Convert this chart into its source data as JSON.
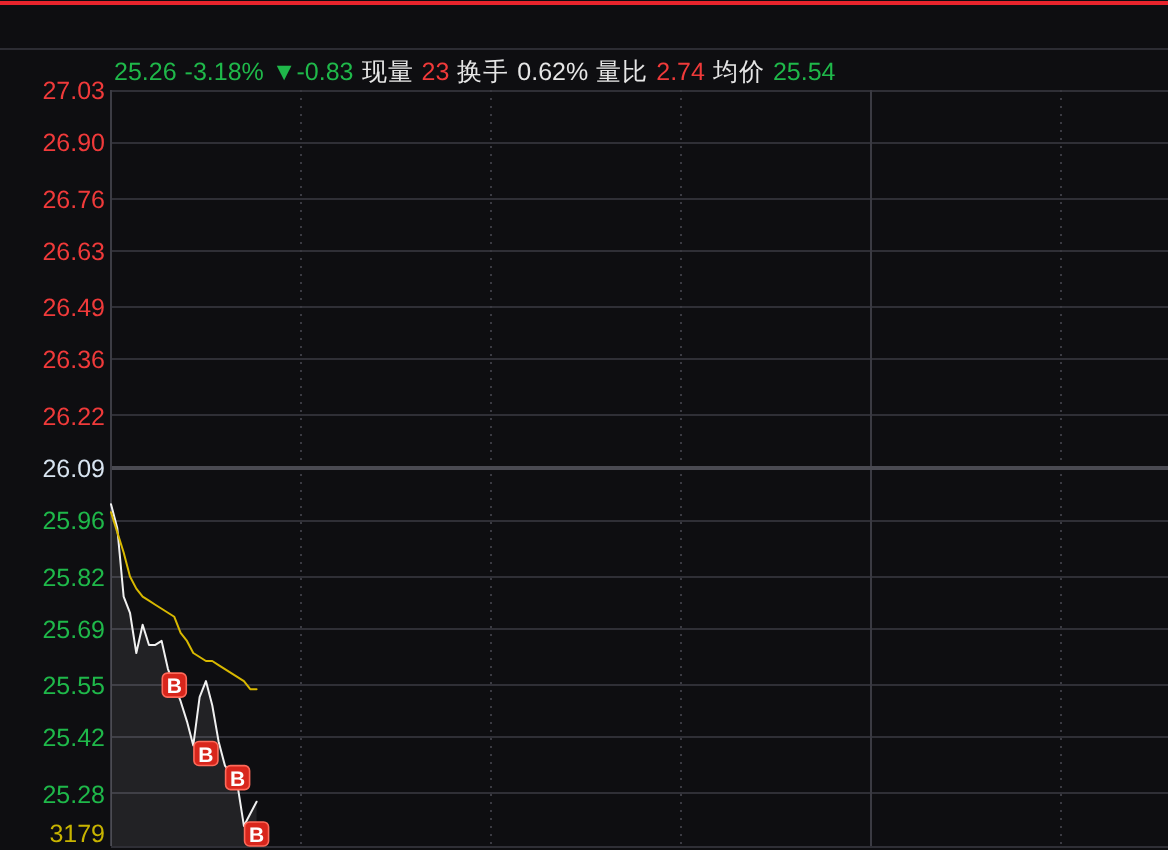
{
  "chart_data": {
    "type": "line",
    "categories": [
      null,
      null,
      null,
      null,
      null,
      null,
      null,
      null,
      null,
      null,
      null,
      null,
      null,
      null,
      null,
      null,
      null,
      null,
      null,
      null,
      null,
      null,
      null,
      null,
      null,
      null,
      null,
      null,
      null,
      null,
      null,
      null,
      null,
      null,
      null,
      null,
      null,
      null,
      null,
      null,
      null,
      null,
      null,
      null,
      null,
      null,
      null,
      null,
      null,
      null,
      null,
      null,
      null,
      null,
      null,
      null,
      null,
      null,
      null,
      null,
      null,
      null,
      null,
      null,
      null,
      null,
      null,
      null,
      null,
      null,
      null,
      null,
      null,
      null,
      null,
      null,
      null,
      null,
      null,
      null,
      null,
      null,
      null,
      null,
      null,
      null,
      null,
      null,
      null,
      null,
      null,
      null,
      null,
      null,
      null,
      null,
      null,
      null,
      null,
      null,
      null,
      null,
      null,
      null,
      null,
      null,
      null,
      null,
      null,
      null,
      null,
      null,
      null,
      null,
      null,
      null,
      null,
      null,
      null,
      null,
      null,
      null,
      null,
      null,
      null,
      null,
      null,
      null,
      null,
      null,
      null,
      null,
      null,
      null,
      null,
      null,
      null,
      null,
      null,
      null,
      null,
      null,
      null,
      null,
      null,
      null,
      null,
      null,
      null,
      null,
      null,
      null,
      null,
      null,
      null,
      null,
      null,
      null,
      null,
      null,
      null,
      null,
      null,
      null,
      null,
      null,
      null,
      null
    ],
    "series": [
      {
        "type": "area",
        "color": "#f0f0f0",
        "values": [
          26.0,
          25.94,
          25.77,
          25.73,
          25.63,
          25.7,
          25.65,
          25.65,
          25.66,
          25.59,
          25.55,
          25.51,
          25.46,
          25.4,
          25.52,
          25.56,
          25.5,
          25.41,
          25.35,
          25.33,
          25.3,
          25.2,
          25.23,
          25.26,
          null,
          null,
          null,
          null,
          null,
          null,
          null,
          null,
          null,
          null,
          null,
          null,
          null,
          null,
          null,
          null,
          null,
          null,
          null,
          null,
          null,
          null,
          null,
          null,
          null,
          null,
          null,
          null,
          null,
          null,
          null,
          null,
          null,
          null,
          null,
          null,
          null,
          null,
          null,
          null,
          null,
          null,
          null,
          null,
          null,
          null,
          null,
          null,
          null,
          null,
          null,
          null,
          null,
          null,
          null,
          null,
          null,
          null,
          null,
          null,
          null,
          null,
          null,
          null,
          null,
          null,
          null,
          null,
          null,
          null,
          null,
          null,
          null,
          null,
          null,
          null,
          null,
          null,
          null,
          null,
          null,
          null,
          null,
          null,
          null,
          null,
          null,
          null,
          null,
          null,
          null,
          null,
          null,
          null,
          null,
          null,
          null,
          null,
          null,
          null,
          null,
          null,
          null,
          null,
          null,
          null,
          null,
          null,
          null,
          null,
          null,
          null,
          null,
          null,
          null,
          null,
          null,
          null,
          null,
          null,
          null,
          null,
          null,
          null,
          null,
          null,
          null,
          null,
          null,
          null,
          null,
          null,
          null,
          null,
          null,
          null,
          null,
          null,
          null,
          null,
          null,
          null,
          null,
          null
        ]
      },
      {
        "type": "line",
        "color": "#d8b800",
        "values": [
          25.98,
          25.93,
          25.88,
          25.82,
          25.79,
          25.77,
          25.76,
          25.75,
          25.74,
          25.73,
          25.72,
          25.68,
          25.66,
          25.63,
          25.62,
          25.61,
          25.61,
          25.6,
          25.59,
          25.58,
          25.57,
          25.56,
          25.54,
          25.54,
          null,
          null,
          null,
          null,
          null,
          null,
          null,
          null,
          null,
          null,
          null,
          null,
          null,
          null,
          null,
          null,
          null,
          null,
          null,
          null,
          null,
          null,
          null,
          null,
          null,
          null,
          null,
          null,
          null,
          null,
          null,
          null,
          null,
          null,
          null,
          null,
          null,
          null,
          null,
          null,
          null,
          null,
          null,
          null,
          null,
          null,
          null,
          null,
          null,
          null,
          null,
          null,
          null,
          null,
          null,
          null,
          null,
          null,
          null,
          null,
          null,
          null,
          null,
          null,
          null,
          null,
          null,
          null,
          null,
          null,
          null,
          null,
          null,
          null,
          null,
          null,
          null,
          null,
          null,
          null,
          null,
          null,
          null,
          null,
          null,
          null,
          null,
          null,
          null,
          null,
          null,
          null,
          null,
          null,
          null,
          null,
          null,
          null,
          null,
          null,
          null,
          null,
          null,
          null,
          null,
          null,
          null,
          null,
          null,
          null,
          null,
          null,
          null,
          null,
          null,
          null,
          null,
          null,
          null,
          null,
          null,
          null,
          null,
          null,
          null,
          null,
          null,
          null,
          null,
          null,
          null,
          null,
          null,
          null,
          null,
          null,
          null,
          null,
          null,
          null,
          null,
          null,
          null,
          null
        ]
      },
      {
        "type": "scatter",
        "name": "B",
        "color": "#d8261c",
        "marker": "square",
        "values": [
          null,
          null,
          null,
          null,
          null,
          null,
          null,
          null,
          null,
          null,
          25.55,
          null,
          null,
          null,
          null,
          25.38,
          null,
          null,
          null,
          null,
          25.32,
          null,
          null,
          25.18,
          null,
          null,
          null,
          null,
          null,
          null,
          null,
          null,
          null,
          null,
          null,
          null,
          null,
          null,
          null,
          null,
          null,
          null,
          null,
          null,
          null,
          null,
          null,
          null,
          null,
          null,
          null,
          null,
          null,
          null,
          null,
          null,
          null,
          null,
          null,
          null,
          null,
          null,
          null,
          null,
          null,
          null,
          null,
          null,
          null,
          null,
          null,
          null,
          null,
          null,
          null,
          null,
          null,
          null,
          null,
          null,
          null,
          null,
          null,
          null,
          null,
          null,
          null,
          null,
          null,
          null,
          null,
          null,
          null,
          null,
          null,
          null,
          null,
          null,
          null,
          null,
          null,
          null,
          null,
          null,
          null,
          null,
          null,
          null,
          null,
          null,
          null,
          null,
          null,
          null,
          null,
          null,
          null,
          null,
          null,
          null,
          null,
          null,
          null,
          null,
          null,
          null,
          null,
          null,
          null,
          null,
          null,
          null,
          null,
          null,
          null,
          null,
          null,
          null,
          null,
          null,
          null,
          null,
          null,
          null,
          null,
          null,
          null,
          null,
          null,
          null,
          null,
          null,
          null,
          null,
          null,
          null,
          null,
          null,
          null,
          null,
          null,
          null,
          null,
          null,
          null,
          null,
          null,
          null
        ]
      }
    ],
    "ylim": [
      25.15,
      27.03
    ],
    "yticks": [
      {
        "value": 25.15,
        "label": null
      },
      {
        "value": 25.28,
        "label": "25.28"
      },
      {
        "value": 25.42,
        "label": "25.42"
      },
      {
        "value": 25.55,
        "label": "25.55"
      },
      {
        "value": 25.69,
        "label": "25.69"
      },
      {
        "value": 25.82,
        "label": "25.82"
      },
      {
        "value": 25.96,
        "label": "25.96"
      },
      {
        "value": 26.09,
        "label": "26.09"
      },
      {
        "value": 26.22,
        "label": "26.22"
      },
      {
        "value": 26.36,
        "label": "26.36"
      },
      {
        "value": 26.49,
        "label": "26.49"
      },
      {
        "value": 26.63,
        "label": "26.63"
      },
      {
        "value": 26.76,
        "label": "26.76"
      },
      {
        "value": 26.9,
        "label": "26.90"
      },
      {
        "value": 27.03,
        "label": "27.03"
      }
    ],
    "grid": true,
    "tick_labels": "y",
    "ref_lines": [
      {
        "axis": "y",
        "value": 26.09,
        "color": "#4a4a52"
      }
    ],
    "annotations": [
      "25.26",
      "-3.18%",
      "▼-0.83",
      "现量",
      "23",
      "换手",
      "0.62%",
      "量比",
      "2.74",
      "均价",
      "25.54",
      "3179"
    ]
  }
}
